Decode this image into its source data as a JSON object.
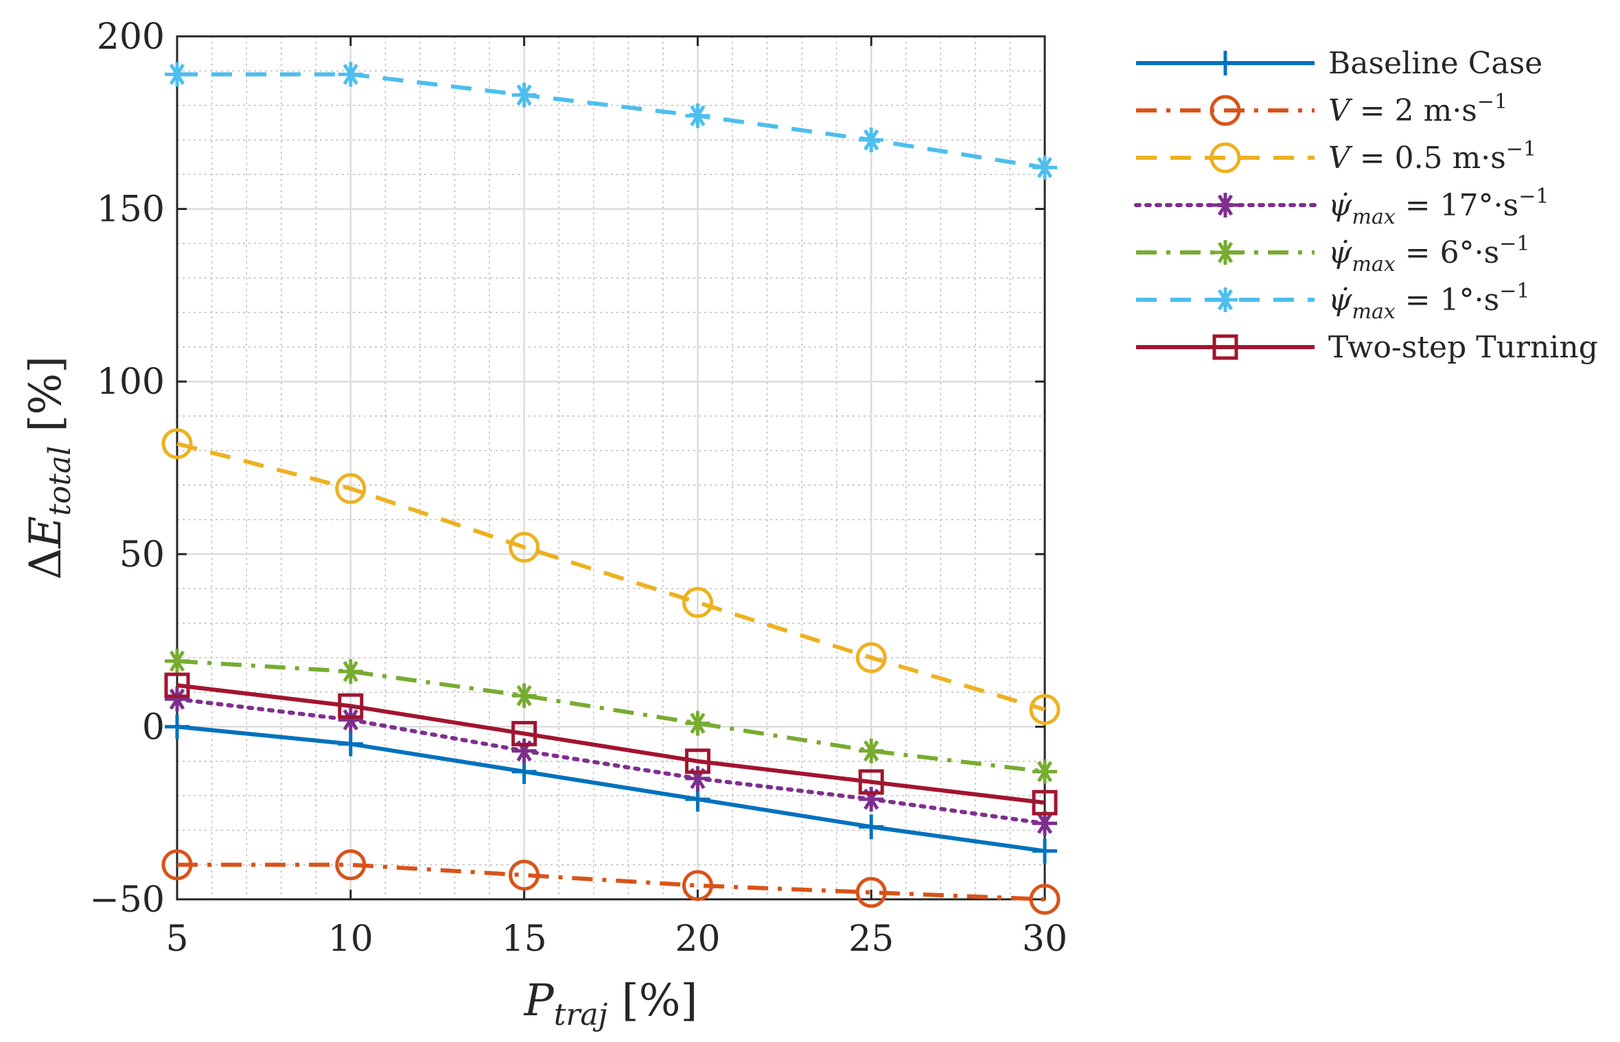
{
  "chart_data": {
    "type": "line",
    "title": "",
    "xlabel": "P_traj [%]",
    "ylabel": "ΔE_total [%]",
    "xlim": [
      5,
      30
    ],
    "ylim": [
      -50,
      200
    ],
    "xticks": [
      "5",
      "10",
      "15",
      "20",
      "25",
      "30"
    ],
    "yticks": [
      "200",
      "150",
      "100",
      "50",
      "0",
      "−50"
    ],
    "grid": true,
    "minor_grid": true,
    "legend_position": "outside-right-top",
    "x": [
      5,
      10,
      15,
      20,
      25,
      30
    ],
    "series": [
      {
        "name": "Baseline Case",
        "color": "#0072BD",
        "dash": "solid",
        "marker": "plus",
        "values": [
          0,
          -5,
          -13,
          -21,
          -29,
          -36
        ]
      },
      {
        "name": "V = 2 m·s⁻¹",
        "color": "#D95319",
        "dash": "dashdot",
        "marker": "circle",
        "values": [
          -40,
          -40,
          -43,
          -46,
          -48,
          -50
        ]
      },
      {
        "name": "V = 0.5 m·s⁻¹",
        "color": "#EDB120",
        "dash": "dashed",
        "marker": "circle",
        "values": [
          82,
          69,
          52,
          36,
          20,
          5
        ]
      },
      {
        "name": "ψ̇max = 17°·s⁻¹",
        "color": "#7E2F8E",
        "dash": "dotted",
        "marker": "asterisk",
        "values": [
          8,
          2,
          -7,
          -15,
          -21,
          -28
        ]
      },
      {
        "name": "ψ̇max = 6°·s⁻¹",
        "color": "#77AC30",
        "dash": "dashdot",
        "marker": "asterisk",
        "values": [
          19,
          16,
          9,
          1,
          -7,
          -13
        ]
      },
      {
        "name": "ψ̇max = 1°·s⁻¹",
        "color": "#4DBEEE",
        "dash": "dashed",
        "marker": "asterisk",
        "values": [
          189,
          189,
          183,
          177,
          170,
          162
        ]
      },
      {
        "name": "Two-step Turning",
        "color": "#A2142F",
        "dash": "solid",
        "marker": "square",
        "values": [
          12,
          6,
          -2,
          -10,
          -16,
          -22
        ]
      }
    ]
  }
}
